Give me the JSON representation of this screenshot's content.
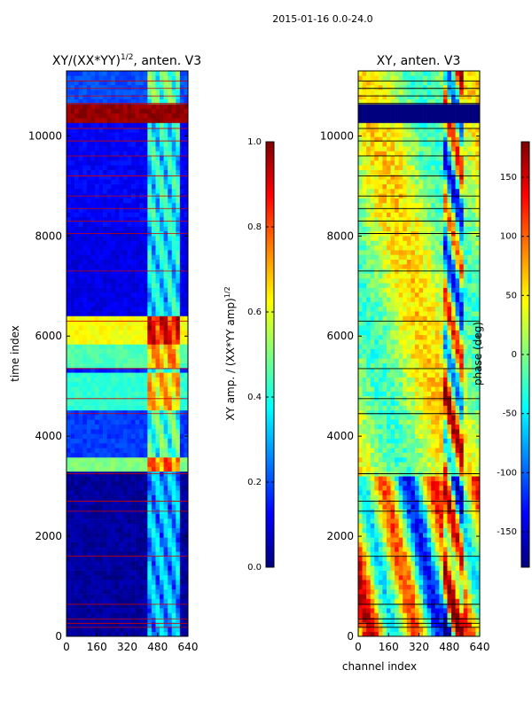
{
  "suptitle": "2015-01-16 0.0-24.0",
  "colormap": [
    "#00007f",
    "#0000ff",
    "#007fff",
    "#00ffff",
    "#7fff7f",
    "#ffff00",
    "#ff7f00",
    "#ff0000",
    "#7f0000"
  ],
  "chart_data": [
    {
      "type": "heatmap",
      "title_base": "XY/(XX*YY)",
      "title_exp": "1/2",
      "title_tail": ", anten. V3",
      "xlabel": "",
      "ylabel": "time index",
      "xlim": [
        0,
        640
      ],
      "ylim": [
        0,
        11300
      ],
      "xticks": [
        "0",
        "160",
        "320",
        "480",
        "640"
      ],
      "yticks": [
        "0",
        "2000",
        "4000",
        "6000",
        "8000",
        "10000"
      ],
      "colorbar": {
        "label_base": "XY amp. / (XX*YY amp)",
        "label_exp": "1/2",
        "range": [
          0.0,
          1.0
        ],
        "ticks": [
          "0.0",
          "0.2",
          "0.4",
          "0.6",
          "0.8",
          "1.0"
        ]
      }
    },
    {
      "type": "heatmap",
      "title": "XY, anten. V3",
      "xlabel": "channel index",
      "ylabel": "",
      "xlim": [
        0,
        640
      ],
      "ylim": [
        0,
        11300
      ],
      "xticks": [
        "0",
        "160",
        "320",
        "480",
        "640"
      ],
      "yticks": [
        "0",
        "2000",
        "4000",
        "6000",
        "8000",
        "10000"
      ],
      "colorbar": {
        "label": "phase (deg)",
        "range": [
          -180,
          180
        ],
        "ticks": [
          "-150",
          "-100",
          "-50",
          "0",
          "50",
          "100",
          "150"
        ]
      }
    }
  ]
}
